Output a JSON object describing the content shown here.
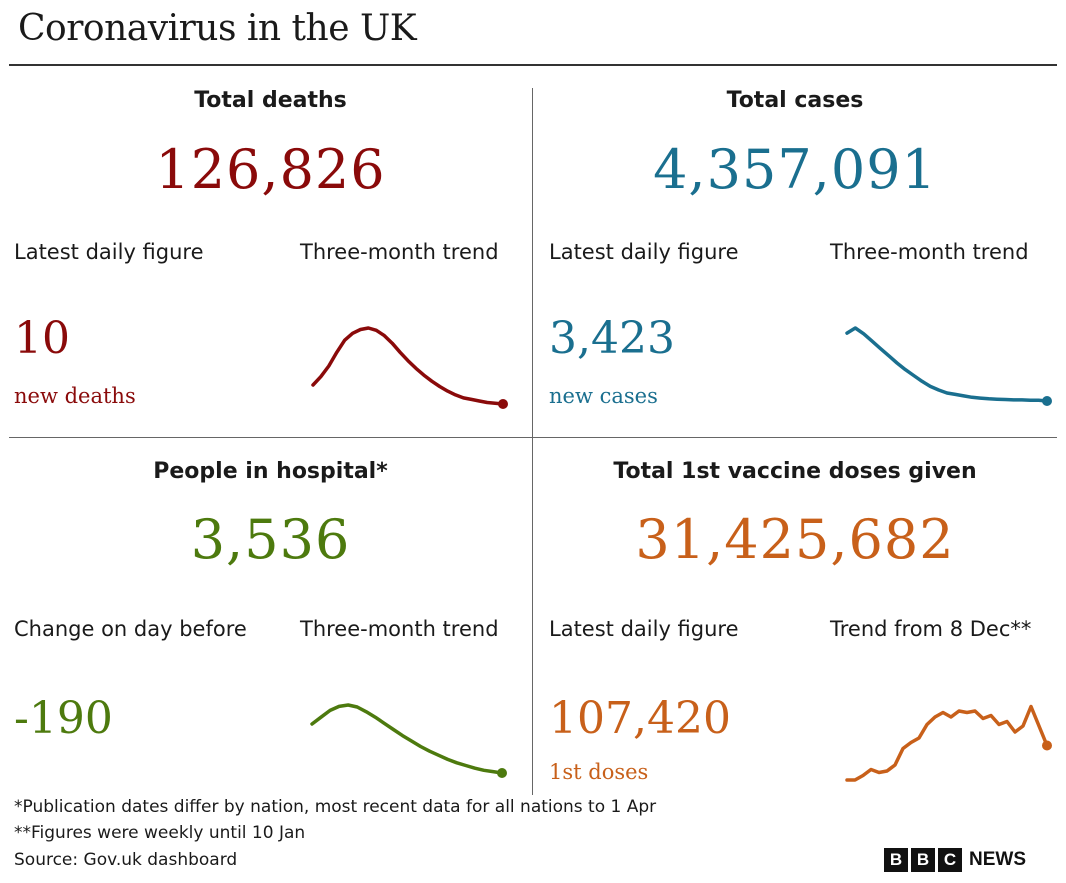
{
  "title": "Coronavirus in the UK",
  "colors": {
    "deaths": "#8a0a0a",
    "cases": "#1a6f8f",
    "hospital": "#4d7a0e",
    "vaccine": "#c8601a"
  },
  "panels": {
    "deaths": {
      "heading": "Total deaths",
      "total": "126,826",
      "left_label": "Latest daily figure",
      "right_label": "Three-month trend",
      "latest_value": "10",
      "latest_unit": "new deaths"
    },
    "cases": {
      "heading": "Total cases",
      "total": "4,357,091",
      "left_label": "Latest daily figure",
      "right_label": "Three-month trend",
      "latest_value": "3,423",
      "latest_unit": "new cases"
    },
    "hospital": {
      "heading": "People in hospital*",
      "total": "3,536",
      "left_label": "Change on day before",
      "right_label": "Three-month trend",
      "latest_value": "-190",
      "latest_unit": ""
    },
    "vaccine": {
      "heading": "Total 1st vaccine doses given",
      "total": "31,425,682",
      "left_label": "Latest daily figure",
      "right_label": "Trend from 8 Dec**",
      "latest_value": "107,420",
      "latest_unit": "1st doses"
    }
  },
  "footnotes": {
    "line1": "*Publication dates differ by nation, most recent data for all nations to 1 Apr",
    "line2": "**Figures were weekly until 10 Jan",
    "source": "Source: Gov.uk dashboard"
  },
  "logo": {
    "letters": [
      "B",
      "B",
      "C"
    ],
    "word": "NEWS"
  },
  "chart_data": [
    {
      "type": "line",
      "series": [
        {
          "values": [
            0.25,
            0.36,
            0.5,
            0.68,
            0.84,
            0.93,
            0.98,
            1.0,
            0.97,
            0.9,
            0.8,
            0.68,
            0.57,
            0.47,
            0.38,
            0.3,
            0.23,
            0.17,
            0.12,
            0.08,
            0.06,
            0.04,
            0.02,
            0.01,
            0.0
          ]
        }
      ],
      "end_marker": true
    },
    {
      "type": "line",
      "series": [
        {
          "values": [
            0.93,
            1.0,
            0.92,
            0.82,
            0.72,
            0.62,
            0.52,
            0.43,
            0.35,
            0.27,
            0.2,
            0.15,
            0.11,
            0.09,
            0.07,
            0.05,
            0.04,
            0.03,
            0.025,
            0.02,
            0.015,
            0.015,
            0.01,
            0.01,
            0.0
          ]
        }
      ],
      "end_marker": true
    },
    {
      "type": "line",
      "series": [
        {
          "values": [
            0.72,
            0.82,
            0.92,
            0.98,
            1.0,
            0.97,
            0.9,
            0.82,
            0.73,
            0.64,
            0.55,
            0.47,
            0.39,
            0.32,
            0.26,
            0.2,
            0.15,
            0.11,
            0.07,
            0.04,
            0.02,
            0.0
          ]
        }
      ],
      "end_marker": true
    },
    {
      "type": "line",
      "series": [
        {
          "values": [
            0.0,
            0.0,
            0.06,
            0.14,
            0.1,
            0.12,
            0.2,
            0.42,
            0.5,
            0.56,
            0.74,
            0.84,
            0.9,
            0.84,
            0.92,
            0.9,
            0.92,
            0.82,
            0.86,
            0.74,
            0.78,
            0.64,
            0.72,
            0.98,
            0.72,
            0.46
          ]
        }
      ],
      "end_marker": true
    }
  ]
}
